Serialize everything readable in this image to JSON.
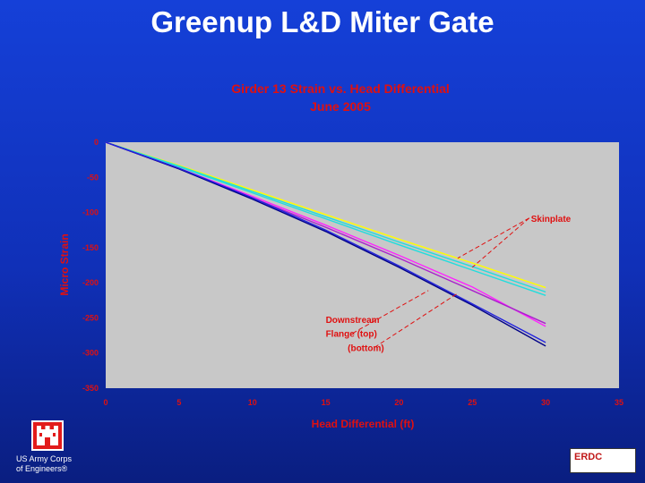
{
  "slide": {
    "title": "Greenup L&D Miter Gate",
    "org_line1": "US Army Corps",
    "org_line2": "of Engineers®",
    "erdc_label": "ERDC"
  },
  "chart_data": {
    "type": "line",
    "title": "Girder 13 Strain vs. Head Differential",
    "subtitle": "June 2005",
    "xlabel": "Head Differential (ft)",
    "ylabel": "Micro Strain",
    "xlim": [
      0,
      35
    ],
    "ylim": [
      -350,
      0
    ],
    "xticks": [
      0,
      5,
      10,
      15,
      20,
      25,
      30,
      35
    ],
    "yticks": [
      0,
      -50,
      -100,
      -150,
      -200,
      -250,
      -300,
      -350
    ],
    "grid": false,
    "legend": "none",
    "colors": {
      "plot_bg": "#c8c8c8",
      "title": "#e01010",
      "annotation": "#e01010",
      "yellow": "#ffff00",
      "cyan": "#22dddd",
      "magenta": "#ff22ff",
      "violet": "#aa22cc",
      "navy": "#000088",
      "blue": "#2222dd"
    },
    "series": [
      {
        "x": [
          0,
          5,
          10,
          15,
          20,
          25,
          30
        ],
        "y": [
          0,
          -33,
          -68,
          -103,
          -138,
          -172,
          -207
        ]
      },
      {
        "x": [
          0,
          5,
          10,
          15,
          20,
          25,
          30
        ],
        "y": [
          0,
          -34,
          -70,
          -106,
          -142,
          -177,
          -213
        ]
      },
      {
        "x": [
          0,
          5,
          10,
          15,
          20,
          25,
          30
        ],
        "y": [
          0,
          -35,
          -72,
          -109,
          -146,
          -182,
          -218
        ]
      },
      {
        "x": [
          0,
          5,
          10,
          15,
          20,
          25,
          30
        ],
        "y": [
          0,
          -37,
          -77,
          -118,
          -161,
          -206,
          -262
        ]
      },
      {
        "x": [
          0,
          5,
          10,
          15,
          20,
          25,
          30
        ],
        "y": [
          0,
          -38,
          -79,
          -121,
          -165,
          -211,
          -258
        ]
      },
      {
        "x": [
          0,
          5,
          10,
          15,
          20,
          25,
          30
        ],
        "y": [
          0,
          -38,
          -81,
          -127,
          -178,
          -232,
          -290
        ]
      },
      {
        "x": [
          0,
          5,
          10,
          15,
          20,
          25,
          30
        ],
        "y": [
          0,
          -37,
          -79,
          -125,
          -176,
          -230,
          -285
        ]
      }
    ],
    "series_colors": [
      "yellow",
      "cyan",
      "cyan",
      "magenta",
      "violet",
      "navy",
      "blue"
    ],
    "annotations": [
      {
        "text": "Skinplate",
        "x": 29,
        "y": -113,
        "pointers": [
          [
            24,
            -165
          ],
          [
            25,
            -178
          ]
        ]
      },
      {
        "text": "Downstream",
        "x": 15,
        "y": -257,
        "pointers": []
      },
      {
        "text": "Flange (top)",
        "x": 15,
        "y": -277,
        "pointers": [
          [
            22,
            -211
          ]
        ]
      },
      {
        "text": "(bottom)",
        "x": 16.5,
        "y": -297,
        "pointers": [
          [
            24,
            -215
          ]
        ]
      }
    ]
  }
}
